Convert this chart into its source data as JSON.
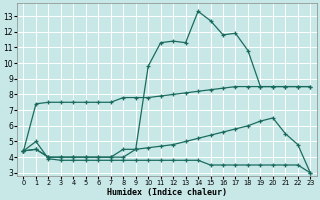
{
  "xlabel": "Humidex (Indice chaleur)",
  "bg_color": "#c8e8e8",
  "grid_color": "#ffffff",
  "line_color": "#1a6b5e",
  "xlim": [
    -0.5,
    23.5
  ],
  "ylim": [
    2.8,
    13.8
  ],
  "xticks": [
    0,
    1,
    2,
    3,
    4,
    5,
    6,
    7,
    8,
    9,
    10,
    11,
    12,
    13,
    14,
    15,
    16,
    17,
    18,
    19,
    20,
    21,
    22,
    23
  ],
  "yticks": [
    3,
    4,
    5,
    6,
    7,
    8,
    9,
    10,
    11,
    12,
    13
  ],
  "curve_peak_x": [
    0,
    1,
    2,
    3,
    4,
    5,
    6,
    7,
    8,
    9,
    10,
    11,
    12,
    13,
    14,
    15,
    16,
    17,
    18,
    19,
    20,
    21,
    22,
    23
  ],
  "curve_peak_y": [
    4.4,
    4.5,
    4.0,
    4.0,
    4.0,
    4.0,
    4.0,
    4.0,
    4.0,
    4.5,
    9.8,
    11.3,
    11.4,
    11.3,
    13.3,
    12.7,
    11.8,
    11.9,
    10.8,
    8.5,
    8.5,
    8.5,
    8.5,
    8.5
  ],
  "curve_upper_x": [
    0,
    1,
    2,
    3,
    4,
    5,
    6,
    7,
    8,
    9,
    10,
    11,
    12,
    13,
    14,
    15,
    16,
    17,
    18,
    19,
    20,
    21,
    22,
    23
  ],
  "curve_upper_y": [
    4.4,
    7.4,
    7.5,
    7.5,
    7.5,
    7.5,
    7.5,
    7.5,
    7.8,
    7.8,
    7.8,
    7.9,
    8.0,
    8.1,
    8.2,
    8.3,
    8.4,
    8.5,
    8.5,
    8.5,
    8.5,
    8.5,
    8.5,
    8.5
  ],
  "curve_mid_x": [
    0,
    1,
    2,
    3,
    4,
    5,
    6,
    7,
    8,
    9,
    10,
    11,
    12,
    13,
    14,
    15,
    16,
    17,
    18,
    19,
    20,
    21,
    22,
    23
  ],
  "curve_mid_y": [
    4.4,
    4.5,
    4.0,
    4.0,
    4.0,
    4.0,
    4.0,
    4.0,
    4.5,
    4.5,
    4.6,
    4.7,
    4.8,
    5.0,
    5.2,
    5.4,
    5.6,
    5.8,
    6.0,
    6.3,
    6.5,
    5.5,
    4.8,
    3.0
  ],
  "curve_lower_x": [
    0,
    1,
    2,
    3,
    4,
    5,
    6,
    7,
    8,
    9,
    10,
    11,
    12,
    13,
    14,
    15,
    16,
    17,
    18,
    19,
    20,
    21,
    22,
    23
  ],
  "curve_lower_y": [
    4.4,
    5.0,
    3.9,
    3.8,
    3.8,
    3.8,
    3.8,
    3.8,
    3.8,
    3.8,
    3.8,
    3.8,
    3.8,
    3.8,
    3.8,
    3.5,
    3.5,
    3.5,
    3.5,
    3.5,
    3.5,
    3.5,
    3.5,
    3.0
  ]
}
